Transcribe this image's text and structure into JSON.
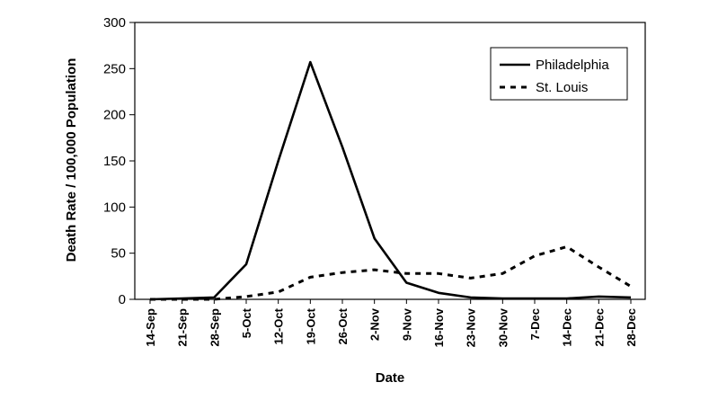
{
  "chart_data": {
    "type": "line",
    "title": "",
    "xlabel": "Date",
    "ylabel": "Death Rate / 100,000 Population",
    "ylim": [
      0,
      300
    ],
    "yticks": [
      0,
      50,
      100,
      150,
      200,
      250,
      300
    ],
    "grid": false,
    "legend_position": "top-right",
    "categories": [
      "14-Sep",
      "21-Sep",
      "28-Sep",
      "5-Oct",
      "12-Oct",
      "19-Oct",
      "26-Oct",
      "2-Nov",
      "9-Nov",
      "16-Nov",
      "23-Nov",
      "30-Nov",
      "7-Dec",
      "14-Dec",
      "21-Dec",
      "28-Dec"
    ],
    "series": [
      {
        "name": "Philadelphia",
        "style": "solid",
        "color": "#000000",
        "values": [
          0,
          1,
          2,
          38,
          150,
          257,
          165,
          66,
          18,
          7,
          2,
          1,
          1,
          1,
          3,
          2
        ]
      },
      {
        "name": "St. Louis",
        "style": "dashed",
        "color": "#000000",
        "values": [
          0,
          0,
          0,
          3,
          8,
          24,
          29,
          32,
          28,
          28,
          23,
          28,
          47,
          57,
          35,
          14
        ]
      }
    ]
  }
}
